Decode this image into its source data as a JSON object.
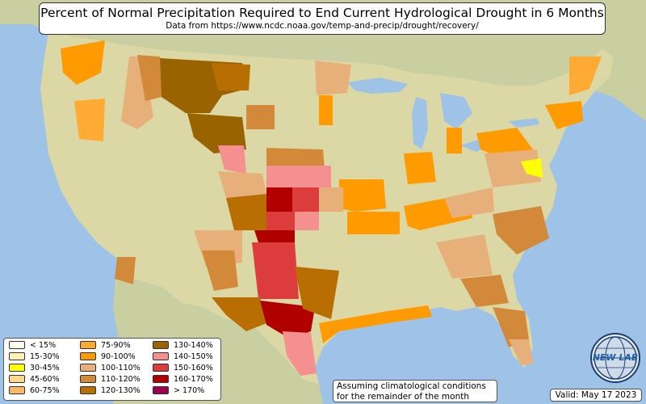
{
  "header": {
    "title": "Percent of Normal Precipitation Required to End Current Hydrological Drought in 6 Months",
    "subtitle": "Data from https://www.ncdc.noaa.gov/temp-and-precip/drought/recovery/"
  },
  "colors": {
    "ocean": "#9ec3e6",
    "land": "#dcd8a6",
    "canada_mexico": "#c9cfa0",
    "lakes": "#9ec3e6"
  },
  "legend": {
    "items": [
      {
        "label": "< 15%",
        "color": "#fffff0"
      },
      {
        "label": "15-30%",
        "color": "#fff1b3"
      },
      {
        "label": "30-45%",
        "color": "#ffff00"
      },
      {
        "label": "45-60%",
        "color": "#ffd68a"
      },
      {
        "label": "60-75%",
        "color": "#ffb866"
      },
      {
        "label": "75-90%",
        "color": "#ffab33"
      },
      {
        "label": "90-100%",
        "color": "#ff9a00"
      },
      {
        "label": "100-110%",
        "color": "#e7b07a"
      },
      {
        "label": "110-120%",
        "color": "#d3893a"
      },
      {
        "label": "120-130%",
        "color": "#b86e00"
      },
      {
        "label": "130-140%",
        "color": "#996300"
      },
      {
        "label": "140-150%",
        "color": "#f59090"
      },
      {
        "label": "150-160%",
        "color": "#dd3c3c"
      },
      {
        "label": "160-170%",
        "color": "#b10000"
      },
      {
        "label": "> 170%",
        "color": "#9e0050"
      }
    ]
  },
  "note": {
    "line1": "Assuming climatological conditions",
    "line2": "for the remainder of the month"
  },
  "valid": "Valid: May 17 2023",
  "logo": {
    "text": "NEW LAB",
    "icon": "globe-icon"
  }
}
